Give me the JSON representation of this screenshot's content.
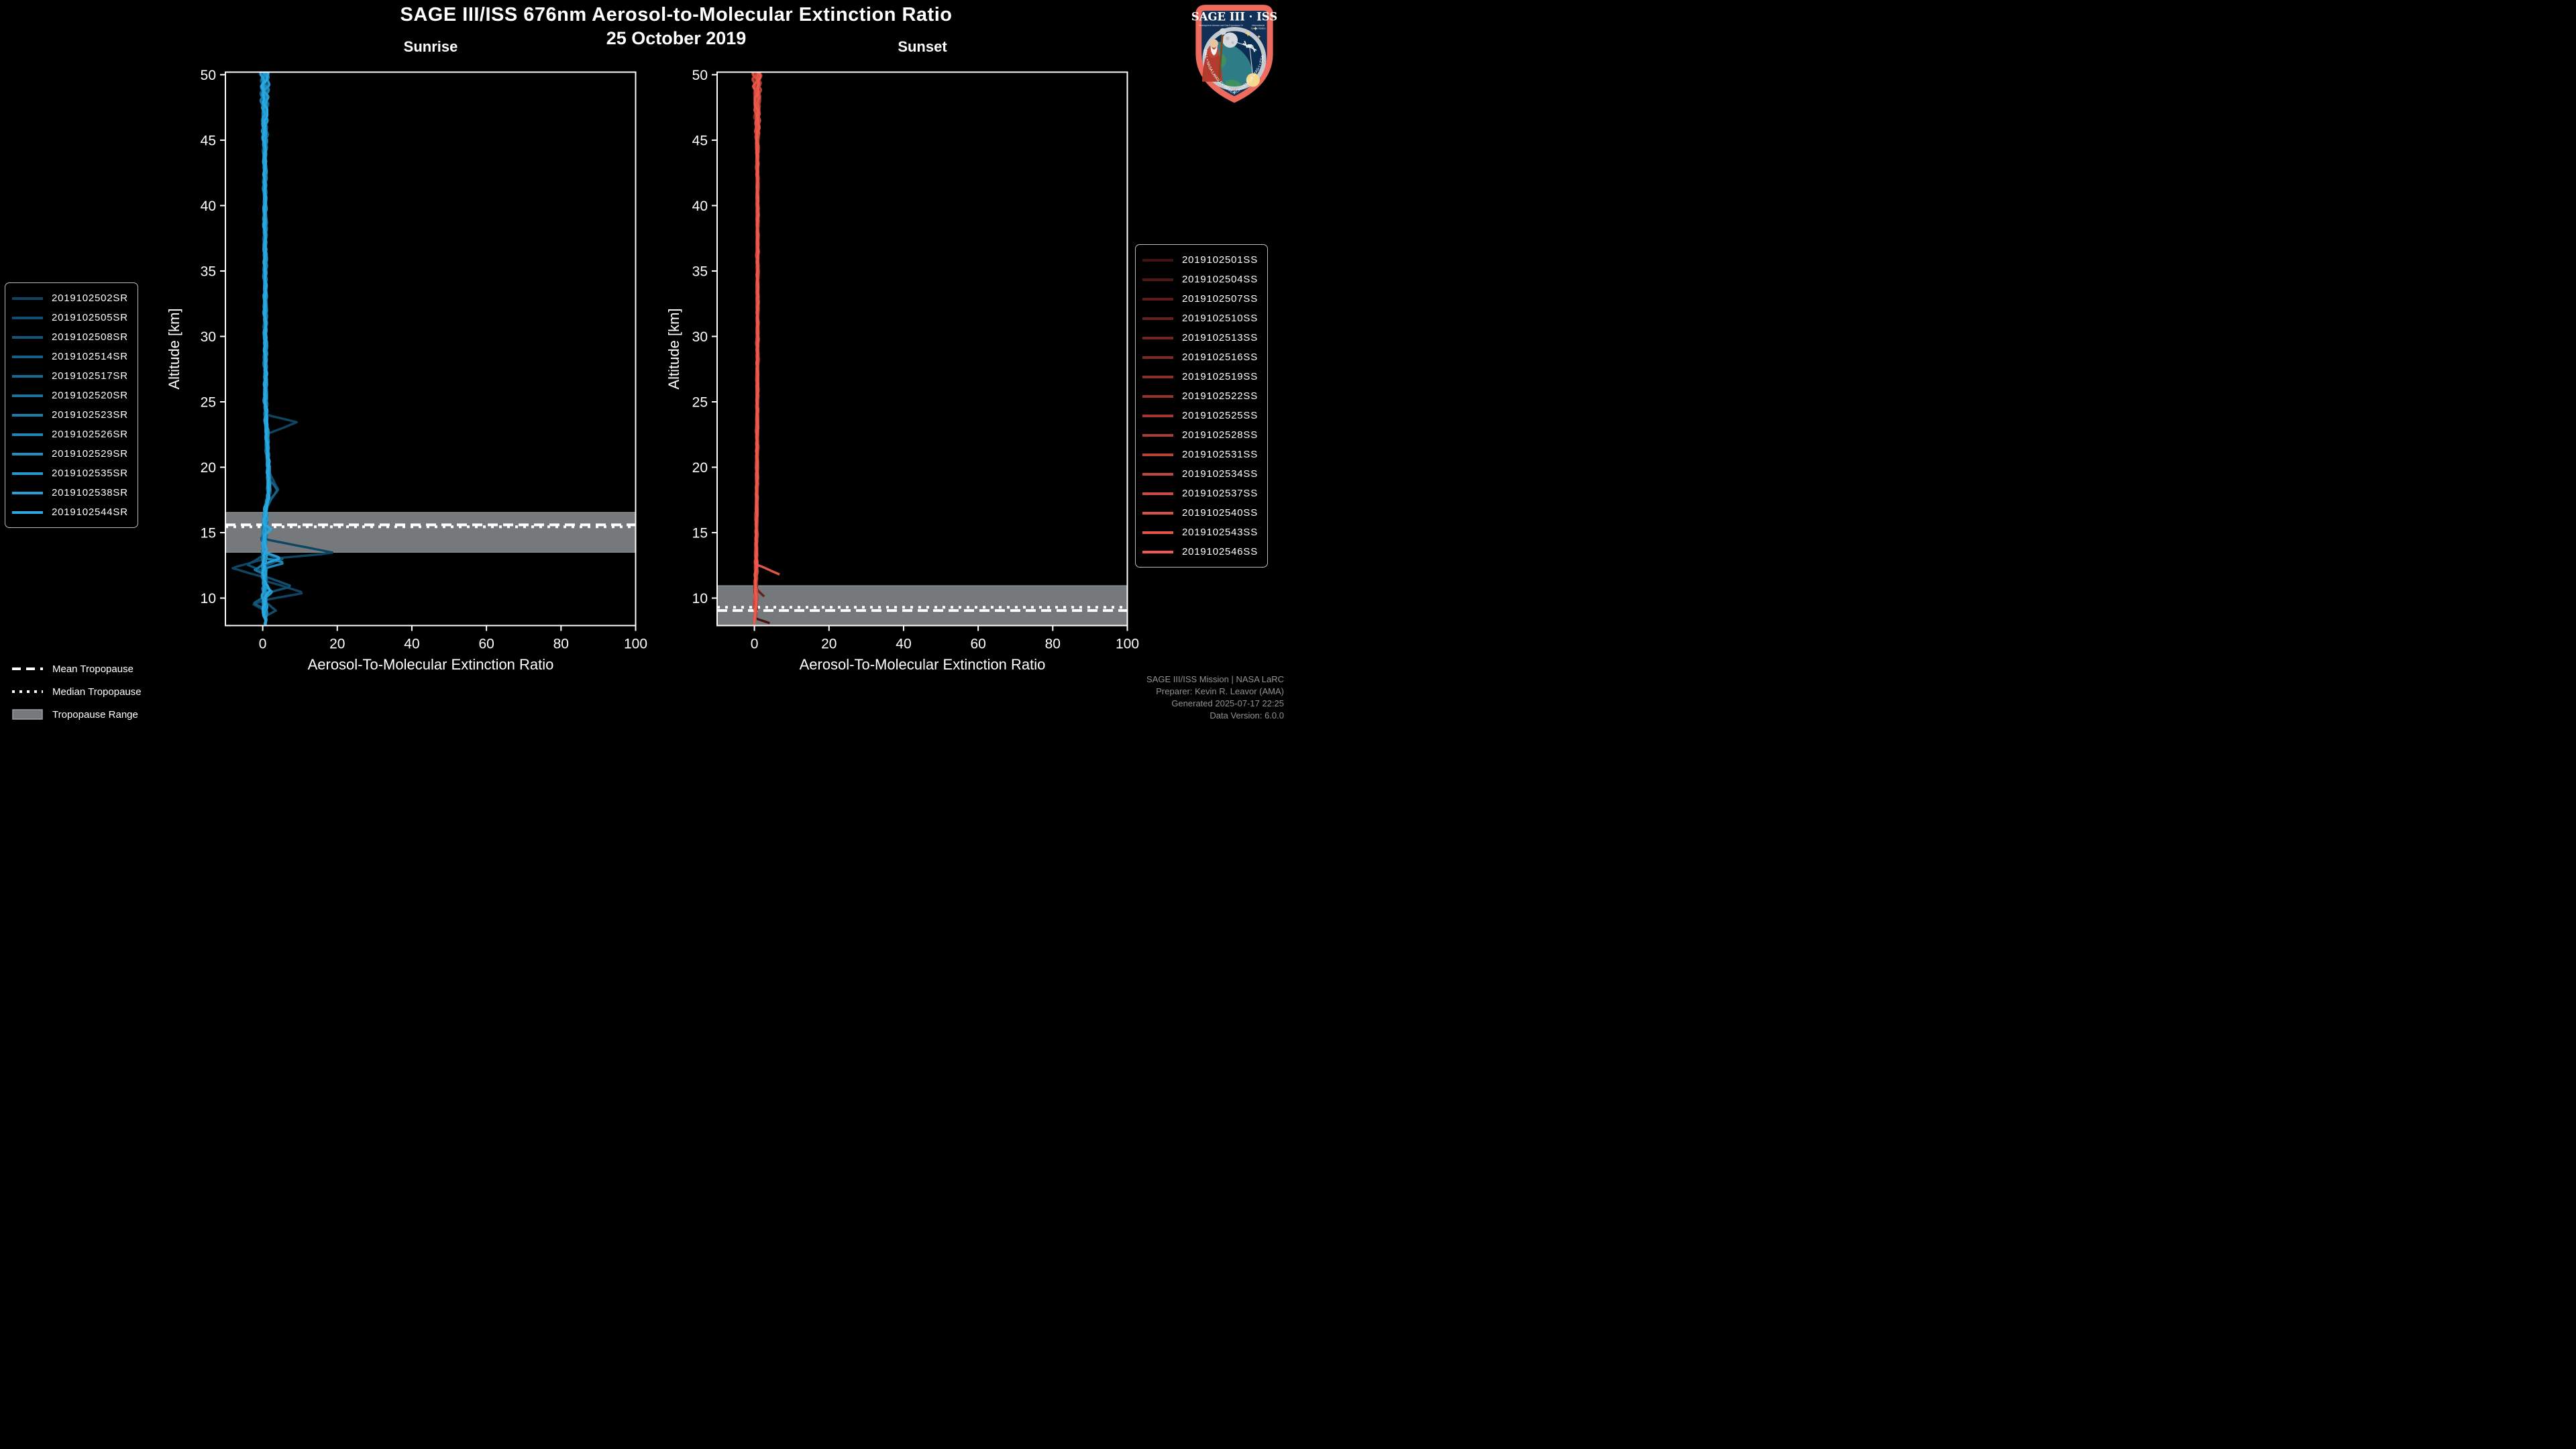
{
  "header": {
    "title": "SAGE III/ISS 676nm Aerosol-to-Molecular Extinction Ratio",
    "date": "25 October 2019"
  },
  "footer": {
    "color": "#909396",
    "lines": [
      "SAGE III/ISS Mission | NASA LaRC",
      "Preparer: Kevin R. Leavor (AMA)",
      "Generated 2025-07-17 22:25",
      "Data Version: 6.0.0"
    ]
  },
  "tropopause_legend": {
    "items": [
      {
        "label": "Mean Tropopause",
        "style": "dashed"
      },
      {
        "label": "Median Tropopause",
        "style": "dotted"
      },
      {
        "label": "Tropopause Range",
        "style": "band"
      }
    ]
  },
  "logo": {
    "title": "SAGE III · ISS",
    "subtitle_left": "Stratospheric Aerosol and Gas Experiment III",
    "subtitle_right_1": "International",
    "subtitle_right_2": "Space Station",
    "border_text": "BALL • NASA LANGLEY RESEARCH CENTER • TAS-I • ESA",
    "border_color": "#ee6a5c",
    "field_color": "#123056"
  },
  "chart_data": [
    {
      "type": "line",
      "title": "Sunrise",
      "xlabel": "Aerosol-To-Molecular Extinction Ratio",
      "ylabel": "Altitude [km]",
      "xlim": [
        -10,
        100
      ],
      "ylim": [
        7.9,
        50.2
      ],
      "xticks": [
        0,
        20,
        40,
        60,
        80,
        100
      ],
      "yticks": [
        10,
        15,
        20,
        25,
        30,
        35,
        40,
        45,
        50
      ],
      "grid": false,
      "legend_position": "center left outside",
      "band_color": "#76797c",
      "band_edge_color": "#9ea1a4",
      "tropopause": {
        "mean_km": 15.6,
        "median_km": 15.45,
        "range_km": [
          13.5,
          16.55
        ]
      },
      "baseline": [
        [
          50.2,
          0.55
        ],
        [
          44,
          0.55
        ],
        [
          25,
          0.75
        ],
        [
          21,
          1.3
        ],
        [
          18.3,
          1.7
        ],
        [
          16.5,
          0.7
        ],
        [
          14,
          0.35
        ],
        [
          11,
          0.5
        ],
        [
          7.9,
          0.55
        ]
      ],
      "style": {
        "fan_start_km": 43.5,
        "fan_amp": 1.35,
        "mid_amp": 0.45,
        "low_start_km": 16.5,
        "low_amp": 0.7,
        "line_width": 3.4
      },
      "series": [
        {
          "name": "2019102502SR",
          "color": "#0e4563",
          "offset": 0.0,
          "top_km": 50.2,
          "bottom_km": 8.9,
          "anomalies": [
            [
              24.0,
              23.45,
              22.5,
              9.2
            ],
            [
              14.5,
              13.45,
              12.95,
              19.2
            ],
            [
              12.95,
              12.3,
              11.6,
              -8.3
            ],
            [
              11.3,
              10.4,
              9.85,
              11.2
            ],
            [
              9.85,
              9.5,
              9.15,
              -2.6
            ]
          ]
        },
        {
          "name": "2019102505SR",
          "color": "#104e6f",
          "offset": -0.1,
          "top_km": 50.2,
          "bottom_km": 8.55,
          "anomalies": [
            [
              19.6,
              18.3,
              17.2,
              4.2
            ],
            [
              13.3,
              12.55,
              12.0,
              -4.2
            ],
            [
              11.7,
              10.9,
              10.3,
              7.9
            ],
            [
              9.7,
              9.05,
              8.6,
              3.6
            ]
          ]
        },
        {
          "name": "2019102508SR",
          "color": "#13577a",
          "offset": 0.1,
          "top_km": 50.2,
          "bottom_km": 8.8,
          "anomalies": [
            [
              13.4,
              13.0,
              12.45,
              5.3
            ],
            [
              10.1,
              9.6,
              9.2,
              -2.4
            ]
          ]
        },
        {
          "name": "2019102514SR",
          "color": "#156086",
          "offset": -0.05,
          "top_km": 50.2,
          "bottom_km": 9.0,
          "anomalies": [
            [
              19.3,
              18.25,
              17.1,
              3.9
            ]
          ]
        },
        {
          "name": "2019102517SR",
          "color": "#186991",
          "offset": 0.15,
          "top_km": 50.2,
          "bottom_km": 8.6,
          "anomalies": []
        },
        {
          "name": "2019102520SR",
          "color": "#1a739d",
          "offset": 0.05,
          "top_km": 50.2,
          "bottom_km": 8.9,
          "anomalies": [
            [
              12.6,
              12.15,
              11.8,
              -2.2
            ]
          ]
        },
        {
          "name": "2019102523SR",
          "color": "#1d7ca8",
          "offset": -0.12,
          "top_km": 50.2,
          "bottom_km": 8.7,
          "anomalies": []
        },
        {
          "name": "2019102526SR",
          "color": "#1f85b4",
          "offset": 0.08,
          "top_km": 50.2,
          "bottom_km": 8.5,
          "anomalies": [
            [
              13.05,
              12.7,
              12.3,
              6.1
            ]
          ]
        },
        {
          "name": "2019102529SR",
          "color": "#228ebf",
          "offset": -0.03,
          "top_km": 50.2,
          "bottom_km": 8.8,
          "anomalies": []
        },
        {
          "name": "2019102535SR",
          "color": "#2497cb",
          "offset": 0.12,
          "top_km": 50.2,
          "bottom_km": 8.6,
          "anomalies": [
            [
              10.9,
              10.45,
              10.05,
              2.6
            ]
          ]
        },
        {
          "name": "2019102538SR",
          "color": "#27a0d7",
          "offset": -0.08,
          "top_km": 50.2,
          "bottom_km": 7.95,
          "anomalies": [
            [
              13.55,
              13.05,
              12.6,
              5.0
            ]
          ]
        },
        {
          "name": "2019102544SR",
          "color": "#29a9e2",
          "offset": 0.02,
          "top_km": 50.2,
          "bottom_km": 7.9,
          "anomalies": [
            [
              15.7,
              15.25,
              14.85,
              2.4
            ],
            [
              11.05,
              10.6,
              10.2,
              2.0
            ]
          ]
        }
      ]
    },
    {
      "type": "line",
      "title": "Sunset",
      "xlabel": "Aerosol-To-Molecular Extinction Ratio",
      "ylabel": "Altitude [km]",
      "xlim": [
        -10,
        100
      ],
      "ylim": [
        7.9,
        50.2
      ],
      "xticks": [
        0,
        20,
        40,
        60,
        80,
        100
      ],
      "yticks": [
        10,
        15,
        20,
        25,
        30,
        35,
        40,
        45,
        50
      ],
      "grid": false,
      "legend_position": "center right outside",
      "band_color": "#76797c",
      "band_edge_color": "#9ea1a4",
      "tropopause": {
        "mean_km": 9.05,
        "median_km": 9.3,
        "range_km": [
          7.9,
          10.95
        ]
      },
      "baseline": [
        [
          50.2,
          0.7
        ],
        [
          40,
          0.85
        ],
        [
          30,
          0.85
        ],
        [
          20,
          0.7
        ],
        [
          12,
          0.45
        ],
        [
          9,
          0.25
        ],
        [
          7.9,
          0.15
        ]
      ],
      "style": {
        "fan_start_km": 43.5,
        "fan_amp": 1.25,
        "mid_amp": 0.28,
        "low_start_km": 13,
        "low_amp": 0.4,
        "line_width": 3.4
      },
      "series": [
        {
          "name": "2019102501SS",
          "color": "#451110",
          "offset": 0.0,
          "top_km": 50.2,
          "bottom_km": 8.05,
          "anomalies": [],
          "end_branch": [
            8.45,
            8.05,
            4.4
          ]
        },
        {
          "name": "2019102504SS",
          "color": "#501614",
          "offset": -0.08,
          "top_km": 50.2,
          "bottom_km": 9.2,
          "anomalies": []
        },
        {
          "name": "2019102507SS",
          "color": "#5c1b18",
          "offset": 0.06,
          "top_km": 50.2,
          "bottom_km": 8.8,
          "anomalies": []
        },
        {
          "name": "2019102510SS",
          "color": "#67201c",
          "offset": -0.04,
          "top_km": 50.2,
          "bottom_km": 10.1,
          "anomalies": [],
          "end_branch": [
            10.75,
            10.1,
            2.7
          ]
        },
        {
          "name": "2019102513SS",
          "color": "#732520",
          "offset": 0.1,
          "top_km": 50.2,
          "bottom_km": 8.9,
          "anomalies": []
        },
        {
          "name": "2019102516SS",
          "color": "#7e2924",
          "offset": -0.1,
          "top_km": 50.2,
          "bottom_km": 9.4,
          "anomalies": []
        },
        {
          "name": "2019102519SS",
          "color": "#892e28",
          "offset": 0.04,
          "top_km": 50.2,
          "bottom_km": 8.6,
          "anomalies": []
        },
        {
          "name": "2019102522SS",
          "color": "#95332c",
          "offset": -0.06,
          "top_km": 50.2,
          "bottom_km": 9.0,
          "anomalies": []
        },
        {
          "name": "2019102525SS",
          "color": "#a03830",
          "offset": 0.12,
          "top_km": 50.2,
          "bottom_km": 8.7,
          "anomalies": []
        },
        {
          "name": "2019102528SS",
          "color": "#ac3d34",
          "offset": -0.02,
          "top_km": 50.2,
          "bottom_km": 9.1,
          "anomalies": []
        },
        {
          "name": "2019102531SS",
          "color": "#b74238",
          "offset": 0.08,
          "top_km": 50.2,
          "bottom_km": 8.5,
          "anomalies": []
        },
        {
          "name": "2019102534SS",
          "color": "#c2463c",
          "offset": -0.12,
          "top_km": 50.2,
          "bottom_km": 8.9,
          "anomalies": []
        },
        {
          "name": "2019102537SS",
          "color": "#ce4b40",
          "offset": 0.05,
          "top_km": 50.2,
          "bottom_km": 8.4,
          "anomalies": []
        },
        {
          "name": "2019102540SS",
          "color": "#d95044",
          "offset": -0.05,
          "top_km": 50.2,
          "bottom_km": 8.3,
          "anomalies": []
        },
        {
          "name": "2019102543SS",
          "color": "#e45548",
          "offset": 0.02,
          "top_km": 50.2,
          "bottom_km": 11.78,
          "anomalies": [],
          "end_branch": [
            12.6,
            11.78,
            6.9
          ]
        },
        {
          "name": "2019102546SS",
          "color": "#f05a4c",
          "offset": 0.0,
          "top_km": 50.2,
          "bottom_km": 7.9,
          "anomalies": []
        }
      ]
    }
  ]
}
